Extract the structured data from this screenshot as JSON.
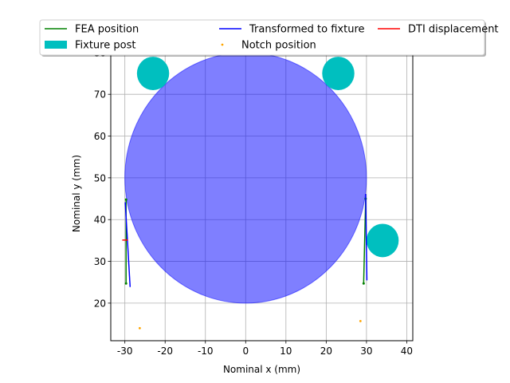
{
  "chart_data": {
    "type": "line",
    "title": "",
    "xlabel": "Nominal x (mm)",
    "ylabel": "Nominal y (mm)",
    "xlim": [
      -33.5,
      41.5
    ],
    "ylim": [
      11,
      81.5
    ],
    "xticks": [
      -30,
      -20,
      -10,
      0,
      10,
      20,
      30,
      40
    ],
    "yticks": [
      20,
      30,
      40,
      50,
      60,
      70,
      80
    ],
    "grid": true,
    "legend": {
      "placement": "top",
      "columns": 3
    },
    "series": [
      {
        "name": "FEA position",
        "kind": "line",
        "color": "#008000",
        "segments": [
          [
            [
              -29.7,
              44.8
            ],
            [
              -29.7,
              24.7
            ]
          ],
          [
            [
              29.8,
              45.0
            ],
            [
              29.3,
              24.7
            ]
          ]
        ]
      },
      {
        "name": "Transformed to fixture",
        "kind": "line",
        "color": "#0000ff",
        "segments": [
          [
            [
              -29.9,
              44.0
            ],
            [
              -28.7,
              24.0
            ]
          ],
          [
            [
              29.8,
              46.0
            ],
            [
              30.1,
              25.6
            ]
          ]
        ]
      },
      {
        "name": "DTI displacement",
        "kind": "line",
        "color": "#ff0000",
        "segments": [
          [
            [
              -30.5,
              35.1
            ],
            [
              -29.4,
              35.1
            ]
          ]
        ]
      },
      {
        "name": "Fixture post",
        "kind": "circles",
        "color": "#00bfbf",
        "circles": [
          {
            "x": -23.0,
            "y": 75.0,
            "r": 4.0
          },
          {
            "x": 23.0,
            "y": 75.0,
            "r": 4.0
          },
          {
            "x": 34.0,
            "y": 35.0,
            "r": 4.0
          }
        ]
      },
      {
        "name": "Notch position",
        "kind": "scatter",
        "color": "#ffa500",
        "points": [
          {
            "x": -26.3,
            "y": 14.0
          },
          {
            "x": 28.5,
            "y": 15.7
          }
        ]
      }
    ],
    "shapes": [
      {
        "kind": "circle",
        "x": 0,
        "y": 50.0,
        "r": 30.0,
        "color": "#0000ff",
        "alpha": 0.5
      }
    ]
  }
}
